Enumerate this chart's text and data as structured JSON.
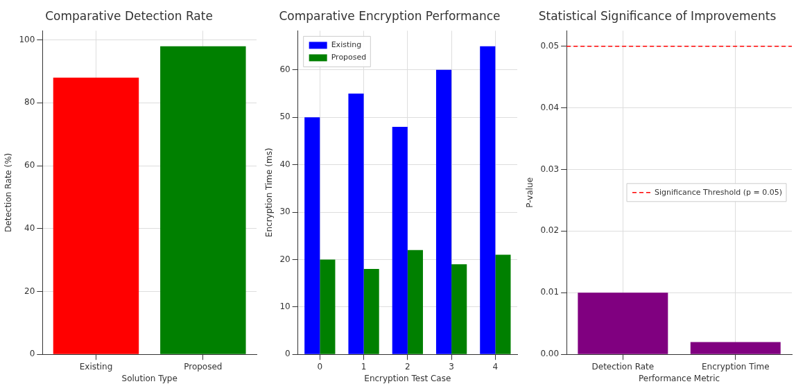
{
  "chart_data": [
    {
      "type": "bar",
      "title": "Comparative Detection Rate",
      "xlabel": "Solution Type",
      "ylabel": "Detection Rate (%)",
      "categories": [
        "Existing",
        "Proposed"
      ],
      "values": [
        88,
        98
      ],
      "colors": [
        "#ff0000",
        "#008000"
      ],
      "ylim": [
        0,
        102.9
      ],
      "yticks": [
        0,
        20,
        40,
        60,
        80,
        100
      ],
      "grid": true
    },
    {
      "type": "bar",
      "title": "Comparative Encryption Performance",
      "xlabel": "Encryption Test Case",
      "ylabel": "Encryption Time (ms)",
      "categories": [
        "0",
        "1",
        "2",
        "3",
        "4"
      ],
      "series": [
        {
          "name": "Existing",
          "color": "#0000ff",
          "values": [
            50,
            55,
            48,
            60,
            65
          ]
        },
        {
          "name": "Proposed",
          "color": "#008000",
          "values": [
            20,
            18,
            22,
            19,
            21
          ]
        }
      ],
      "ylim": [
        0,
        68.25
      ],
      "yticks": [
        0,
        10,
        20,
        30,
        40,
        50,
        60
      ],
      "grid": true,
      "legend": "top left"
    },
    {
      "type": "bar",
      "title": "Statistical Significance of Improvements",
      "xlabel": "Performance Metric",
      "ylabel": "P-value",
      "categories": [
        "Detection Rate",
        "Encryption Time"
      ],
      "values": [
        0.01,
        0.002
      ],
      "color": "#800080",
      "ylim": [
        0,
        0.0525
      ],
      "yticks": [
        {
          "value": 0,
          "label": "0.00"
        },
        0.01,
        0.02,
        0.03,
        0.04,
        0.05
      ],
      "grid": true,
      "legend": "center right",
      "ref_lines": [
        {
          "axis": "y",
          "value": 0.05,
          "label": "Significance Threshold (p = 0.05)",
          "color": "#ff0000",
          "line_style": "dashed"
        }
      ]
    }
  ]
}
